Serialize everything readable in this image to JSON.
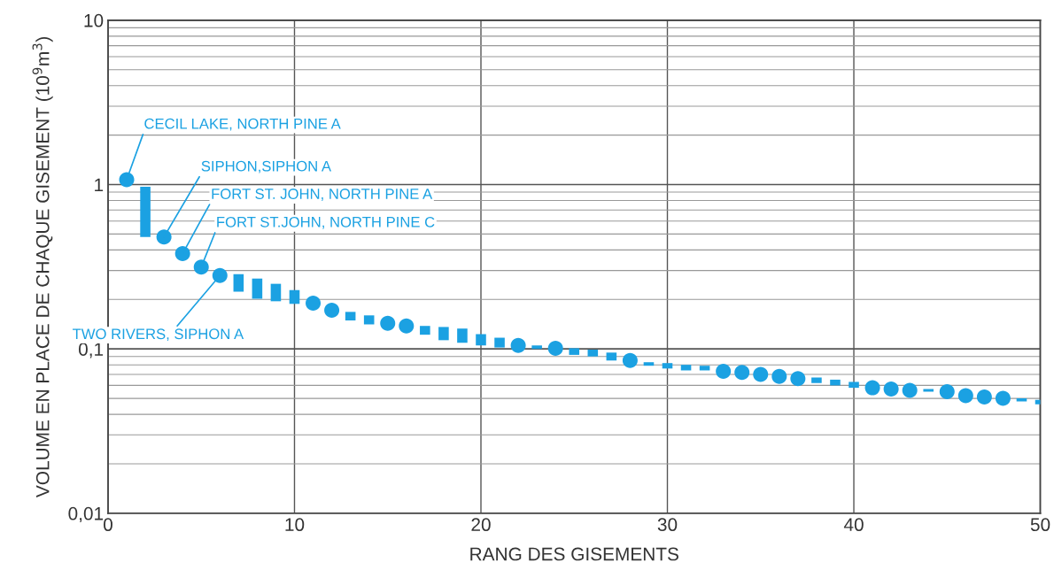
{
  "chart_data": {
    "type": "scatter",
    "xlabel": "RANG DES GISEMENTS",
    "ylabel": "VOLUME EN PLACE DE CHAQUE GISEMENT (10$^{9}$m$^{3}$)",
    "log": "y",
    "grid": true,
    "marker": "circle",
    "xlim": [
      0,
      50
    ],
    "xticks": [
      0,
      10,
      20,
      30,
      40,
      50
    ],
    "ylim": [
      0.01,
      10
    ],
    "yticks": [
      {
        "value": 0.01,
        "label": "0,01"
      },
      {
        "value": 0.1,
        "label": "0,1"
      },
      1,
      10
    ],
    "series": [
      {
        "color": "#1ba1e2",
        "x": [
          1,
          3,
          4,
          5,
          6,
          11,
          12,
          15,
          16,
          22,
          24,
          28,
          33,
          34,
          35,
          36,
          37,
          41,
          42,
          43,
          45,
          46,
          47,
          48
        ],
        "values": [
          1.07,
          0.48,
          0.38,
          0.315,
          0.28,
          0.19,
          0.172,
          0.143,
          0.138,
          0.105,
          0.101,
          0.085,
          0.073,
          0.072,
          0.07,
          0.068,
          0.066,
          0.058,
          0.057,
          0.056,
          0.055,
          0.052,
          0.051,
          0.05
        ]
      },
      {
        "type": "bar",
        "color": "#1ba1e2",
        "x": [
          2,
          7,
          8,
          9,
          10,
          13,
          14,
          17,
          18,
          19,
          20,
          21,
          23,
          25,
          26,
          27,
          29,
          30,
          31,
          32,
          38,
          39,
          40,
          44,
          49,
          50
        ],
        "base": [
          0.48,
          0.223,
          0.202,
          0.195,
          0.188,
          0.149,
          0.141,
          0.122,
          0.113,
          0.109,
          0.105,
          0.102,
          0.1,
          0.092,
          0.09,
          0.085,
          0.079,
          0.076,
          0.074,
          0.074,
          0.062,
          0.06,
          0.058,
          0.055,
          0.048,
          0.046
        ],
        "values": [
          0.49,
          0.062,
          0.066,
          0.054,
          0.04,
          0.019,
          0.019,
          0.016,
          0.023,
          0.024,
          0.018,
          0.015,
          0.005,
          0.009,
          0.009,
          0.01,
          0.004,
          0.006,
          0.006,
          0.005,
          0.005,
          0.005,
          0.005,
          0.002,
          0.002,
          0.003
        ]
      }
    ],
    "annotations": [
      {
        "text": "CECIL LAKE, NORTH PINE A",
        "x": 1,
        "y": 1.07
      },
      {
        "text": "SIPHON,SIPHON A",
        "x": 3,
        "y": 0.48
      },
      {
        "text": "FORT ST. JOHN, NORTH PINE A",
        "x": 4,
        "y": 0.38
      },
      {
        "text": "FORT ST.JOHN, NORTH PINE C",
        "x": 5,
        "y": 0.315
      },
      {
        "text": "TWO RIVERS, SIPHON A",
        "x": 6,
        "y": 0.28
      }
    ]
  }
}
